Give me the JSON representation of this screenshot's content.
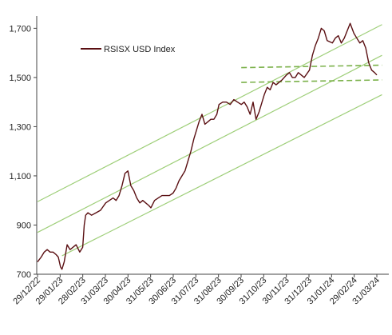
{
  "chart_data": {
    "type": "line",
    "title": "",
    "xlabel": "",
    "ylabel": "",
    "ylim": [
      700,
      1750
    ],
    "yticks": [
      700,
      900,
      1100,
      1300,
      1500,
      1700
    ],
    "ytick_labels": [
      "700",
      "900",
      "1,100",
      "1,300",
      "1,500",
      "1,700"
    ],
    "xticks": [
      "29/12/22",
      "29/01/23",
      "28/02/23",
      "31/03/23",
      "30/04/23",
      "31/05/23",
      "30/06/23",
      "31/07/23",
      "31/08/23",
      "30/09/23",
      "31/10/23",
      "30/11/23",
      "31/12/23",
      "31/01/24",
      "29/02/24",
      "31/03/24"
    ],
    "grid": false,
    "legend": {
      "position": "top-left",
      "entries": [
        "RSISX USD Index"
      ]
    },
    "colors": {
      "series": "#5a0f12",
      "channel": "#9fcf7a",
      "dashed": "#7bb14a",
      "axis": "#444444"
    },
    "series": [
      {
        "name": "RSISX USD Index",
        "x": [
          "2022-12-29",
          "2023-01-03",
          "2023-01-07",
          "2023-01-11",
          "2023-01-15",
          "2023-01-19",
          "2023-01-23",
          "2023-01-26",
          "2023-01-29",
          "2023-01-31",
          "2023-02-03",
          "2023-02-07",
          "2023-02-11",
          "2023-02-15",
          "2023-02-19",
          "2023-02-24",
          "2023-02-28",
          "2023-03-02",
          "2023-03-04",
          "2023-03-07",
          "2023-03-12",
          "2023-03-18",
          "2023-03-24",
          "2023-03-31",
          "2023-04-05",
          "2023-04-10",
          "2023-04-14",
          "2023-04-18",
          "2023-04-22",
          "2023-04-26",
          "2023-04-30",
          "2023-05-04",
          "2023-05-08",
          "2023-05-12",
          "2023-05-16",
          "2023-05-20",
          "2023-05-24",
          "2023-05-28",
          "2023-05-31",
          "2023-06-05",
          "2023-06-10",
          "2023-06-15",
          "2023-06-20",
          "2023-06-25",
          "2023-06-30",
          "2023-07-04",
          "2023-07-08",
          "2023-07-12",
          "2023-07-16",
          "2023-07-20",
          "2023-07-24",
          "2023-07-28",
          "2023-07-31",
          "2023-08-04",
          "2023-08-08",
          "2023-08-12",
          "2023-08-16",
          "2023-08-20",
          "2023-08-24",
          "2023-08-28",
          "2023-08-31",
          "2023-09-05",
          "2023-09-10",
          "2023-09-15",
          "2023-09-20",
          "2023-09-25",
          "2023-09-30",
          "2023-10-04",
          "2023-10-08",
          "2023-10-12",
          "2023-10-16",
          "2023-10-20",
          "2023-10-24",
          "2023-10-28",
          "2023-10-31",
          "2023-11-04",
          "2023-11-08",
          "2023-11-12",
          "2023-11-16",
          "2023-11-20",
          "2023-11-24",
          "2023-11-30",
          "2023-12-04",
          "2023-12-08",
          "2023-12-12",
          "2023-12-16",
          "2023-12-20",
          "2023-12-24",
          "2023-12-31",
          "2024-01-04",
          "2024-01-08",
          "2024-01-12",
          "2024-01-16",
          "2024-01-20",
          "2024-01-24",
          "2024-01-31",
          "2024-02-04",
          "2024-02-08",
          "2024-02-12",
          "2024-02-16",
          "2024-02-20",
          "2024-02-24",
          "2024-02-29",
          "2024-03-04",
          "2024-03-08",
          "2024-03-12",
          "2024-03-16",
          "2024-03-20",
          "2024-03-24",
          "2024-03-28",
          "2024-03-31"
        ],
        "values": [
          750,
          770,
          790,
          800,
          790,
          790,
          780,
          770,
          730,
          720,
          750,
          820,
          800,
          810,
          820,
          790,
          810,
          900,
          940,
          950,
          940,
          950,
          960,
          990,
          1000,
          1010,
          1000,
          1020,
          1060,
          1110,
          1120,
          1060,
          1040,
          1010,
          990,
          1000,
          990,
          980,
          970,
          1000,
          1010,
          1020,
          1020,
          1020,
          1030,
          1050,
          1080,
          1100,
          1120,
          1160,
          1200,
          1250,
          1280,
          1320,
          1350,
          1310,
          1320,
          1330,
          1330,
          1350,
          1390,
          1400,
          1400,
          1390,
          1410,
          1400,
          1390,
          1400,
          1380,
          1350,
          1400,
          1330,
          1360,
          1400,
          1430,
          1460,
          1450,
          1480,
          1470,
          1480,
          1490,
          1510,
          1520,
          1500,
          1500,
          1520,
          1510,
          1500,
          1530,
          1590,
          1630,
          1660,
          1700,
          1690,
          1650,
          1640,
          1660,
          1670,
          1640,
          1660,
          1690,
          1720,
          1680,
          1660,
          1640,
          1650,
          1620,
          1560,
          1530,
          1520,
          1510
        ]
      }
    ],
    "channel_lines": [
      {
        "x": [
          "2022-12-29",
          "2024-04-07"
        ],
        "values": [
          995,
          1715
        ]
      },
      {
        "x": [
          "2022-12-29",
          "2024-04-07"
        ],
        "values": [
          870,
          1590
        ]
      },
      {
        "x": [
          "2023-01-31",
          "2024-04-07"
        ],
        "values": [
          775,
          1430
        ]
      }
    ],
    "dashed_lines": [
      {
        "x": [
          "2023-09-30",
          "2024-04-07"
        ],
        "values": [
          1540,
          1550
        ]
      },
      {
        "x": [
          "2023-09-30",
          "2024-04-07"
        ],
        "values": [
          1480,
          1490
        ]
      }
    ]
  }
}
